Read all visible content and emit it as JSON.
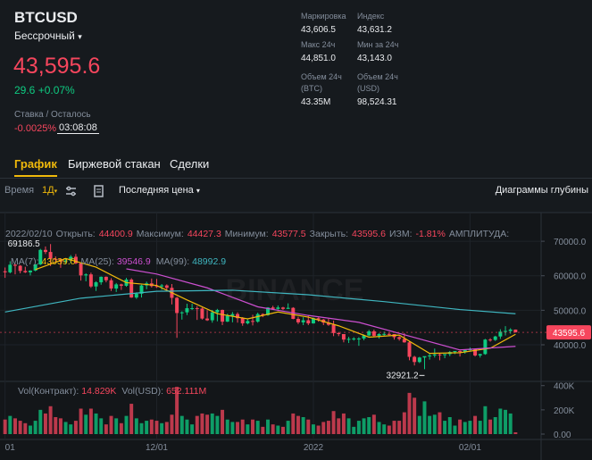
{
  "header": {
    "symbol": "BTCUSD",
    "contract": "Бессрочный",
    "price": "43,595.6",
    "change": "29.6 +0.07%",
    "funding_label": "Ставка / Осталось",
    "funding_rate": "-0.0025%",
    "countdown": "03:08:08"
  },
  "stats": [
    {
      "label": "Маркировка",
      "value": "43,606.5"
    },
    {
      "label": "Индекс",
      "value": "43,631.2"
    },
    {
      "label": "Макс 24ч",
      "value": "44,851.0"
    },
    {
      "label": "Мин за 24ч",
      "value": "43,143.0"
    },
    {
      "label": "Объем 24ч (BTC)",
      "value": "43.35M"
    },
    {
      "label": "Объем 24ч (USD)",
      "value": "98,524.31"
    }
  ],
  "tabs": [
    "График",
    "Биржевой стакан",
    "Сделки"
  ],
  "toolbar": {
    "time_label": "Время",
    "interval": "1Д",
    "price_type": "Последняя цена",
    "depth": "Диаграммы глубины"
  },
  "chart_data": {
    "type": "candlestick",
    "watermark": "BINANCE",
    "ohlc_legend": {
      "date": "2022/02/10",
      "open": "Открыть:",
      "high": "Максимум:",
      "low": "Минимум:",
      "close": "Закрыть:",
      "change_label": "ИЗМ:",
      "change": "-1.81%",
      "amplitude": "АМПЛИТУДА:"
    },
    "up_color": "#0ecb81",
    "down_color": "#f6465d",
    "xlim": [
      -1,
      105
    ],
    "xticks": [
      {
        "value": 0,
        "label": "01"
      },
      {
        "value": 30,
        "label": "12/01"
      },
      {
        "value": 61,
        "label": "2022"
      },
      {
        "value": 92,
        "label": "02/01"
      }
    ],
    "ylim": [
      29900,
      76500
    ],
    "yticks": [
      {
        "value": 70000,
        "label": "70000.0"
      },
      {
        "value": 60000,
        "label": "60000.0"
      },
      {
        "value": 50000,
        "label": "50000.0"
      },
      {
        "value": 40000,
        "label": "40000.0"
      }
    ],
    "candles": [
      [
        61300,
        62400,
        59400,
        61000
      ],
      [
        61000,
        64200,
        60700,
        63200
      ],
      [
        63200,
        63500,
        60400,
        62900
      ],
      [
        62900,
        63100,
        60700,
        61400
      ],
      [
        61400,
        62600,
        60800,
        61000
      ],
      [
        61000,
        61600,
        60100,
        61500
      ],
      [
        61500,
        63300,
        61300,
        63300
      ],
      [
        63300,
        67800,
        63100,
        67500
      ],
      [
        67500,
        68500,
        66300,
        66900
      ],
      [
        66900,
        69186.5,
        62800,
        64900
      ],
      [
        64900,
        65600,
        64100,
        64800
      ],
      [
        64800,
        65000,
        62300,
        64100
      ],
      [
        64100,
        65000,
        63400,
        64400
      ],
      [
        64400,
        66000,
        63600,
        65500
      ],
      [
        65500,
        66300,
        63400,
        63600
      ],
      [
        63600,
        63600,
        58600,
        60100
      ],
      [
        60100,
        60700,
        58400,
        60400
      ],
      [
        60400,
        60900,
        56500,
        56900
      ],
      [
        56900,
        58400,
        55600,
        58100
      ],
      [
        58100,
        59800,
        57400,
        59700
      ],
      [
        59700,
        59800,
        58100,
        58700
      ],
      [
        58700,
        59300,
        55600,
        56300
      ],
      [
        56300,
        57900,
        55300,
        57500
      ],
      [
        57500,
        57700,
        55900,
        57100
      ],
      [
        57100,
        59400,
        56800,
        58900
      ],
      [
        58900,
        59300,
        53600,
        53700
      ],
      [
        53700,
        55200,
        53300,
        54800
      ],
      [
        54800,
        57400,
        53700,
        57200
      ],
      [
        57200,
        58300,
        56100,
        57800
      ],
      [
        57800,
        59200,
        56600,
        57000
      ],
      [
        57000,
        59100,
        56500,
        56900
      ],
      [
        56900,
        57600,
        55900,
        57200
      ],
      [
        57200,
        57500,
        55900,
        56500
      ],
      [
        56500,
        57600,
        51700,
        53600
      ],
      [
        53600,
        53900,
        42000,
        49200
      ],
      [
        49200,
        49700,
        47300,
        49400
      ],
      [
        49400,
        51900,
        48600,
        50600
      ],
      [
        50600,
        51900,
        50100,
        50600
      ],
      [
        50600,
        51200,
        47200,
        50500
      ],
      [
        50500,
        50800,
        47300,
        47600
      ],
      [
        47600,
        50000,
        46900,
        47100
      ],
      [
        47100,
        50100,
        46400,
        49400
      ],
      [
        49400,
        50400,
        46800,
        50100
      ],
      [
        50100,
        50200,
        45700,
        46700
      ],
      [
        46700,
        49000,
        46600,
        48400
      ],
      [
        48400,
        49500,
        46500,
        48900
      ],
      [
        48900,
        49400,
        46400,
        47700
      ],
      [
        47700,
        48000,
        45500,
        46200
      ],
      [
        46200,
        47400,
        45900,
        46900
      ],
      [
        46900,
        48700,
        45600,
        46700
      ],
      [
        46700,
        49300,
        46400,
        48900
      ],
      [
        48900,
        49100,
        48000,
        48600
      ],
      [
        48600,
        50900,
        48400,
        50800
      ],
      [
        50800,
        51300,
        50300,
        50400
      ],
      [
        50400,
        51400,
        50200,
        50800
      ],
      [
        50800,
        51000,
        50100,
        50400
      ],
      [
        50400,
        52000,
        50400,
        50700
      ],
      [
        50700,
        50900,
        47400,
        47500
      ],
      [
        47500,
        48100,
        46000,
        46500
      ],
      [
        46500,
        48000,
        45700,
        47100
      ],
      [
        47100,
        48500,
        45700,
        46200
      ],
      [
        46200,
        47900,
        46100,
        47700
      ],
      [
        47700,
        47900,
        46700,
        47300
      ],
      [
        47300,
        47500,
        45700,
        46400
      ],
      [
        46400,
        47500,
        45500,
        45800
      ],
      [
        45800,
        47000,
        42500,
        43400
      ],
      [
        43400,
        43700,
        42500,
        43100
      ],
      [
        43100,
        43100,
        40700,
        41500
      ],
      [
        41500,
        42300,
        40500,
        41700
      ],
      [
        41700,
        42200,
        41200,
        41800
      ],
      [
        41800,
        42200,
        39700,
        41800
      ],
      [
        41800,
        43000,
        41300,
        42700
      ],
      [
        42700,
        44300,
        42500,
        43900
      ],
      [
        43900,
        44400,
        42400,
        42600
      ],
      [
        42600,
        43400,
        41800,
        43100
      ],
      [
        43100,
        43800,
        42600,
        43150
      ],
      [
        43150,
        43500,
        42600,
        43100
      ],
      [
        43100,
        43100,
        41500,
        42200
      ],
      [
        42200,
        42500,
        41200,
        41700
      ],
      [
        41700,
        43400,
        40600,
        40700
      ],
      [
        40700,
        41100,
        35500,
        36500
      ],
      [
        36500,
        36800,
        34000,
        35000
      ],
      [
        35000,
        36500,
        34700,
        36300
      ],
      [
        36300,
        36400,
        32921.2,
        36700
      ],
      [
        36700,
        37500,
        35700,
        36900
      ],
      [
        36900,
        38900,
        36300,
        37200
      ],
      [
        37200,
        37500,
        35500,
        37000
      ],
      [
        37000,
        37200,
        36100,
        37300
      ],
      [
        37300,
        38200,
        36700,
        37900
      ],
      [
        37900,
        38000,
        37300,
        38200
      ],
      [
        38200,
        38300,
        36600,
        37900
      ],
      [
        37900,
        38700,
        37400,
        38500
      ],
      [
        38500,
        39200,
        38300,
        38700
      ],
      [
        38700,
        38900,
        36600,
        36900
      ],
      [
        36900,
        37400,
        36300,
        37300
      ],
      [
        37300,
        41700,
        37100,
        41500
      ],
      [
        41500,
        41900,
        40900,
        41400
      ],
      [
        41400,
        42600,
        41100,
        42400
      ],
      [
        42400,
        44500,
        41700,
        43800
      ],
      [
        43800,
        45400,
        42700,
        44000
      ],
      [
        44000,
        44800,
        43200,
        44400.9
      ],
      [
        44400.9,
        44427.3,
        43577.5,
        43595.6
      ]
    ],
    "ma": [
      {
        "name": "MA(7):",
        "value_label": "43039.0",
        "color": "#f0b90b",
        "x": [
          6,
          12,
          18,
          24,
          30,
          36,
          42,
          48,
          54,
          60,
          66,
          72,
          78,
          84,
          90,
          96,
          101
        ],
        "values": [
          61800,
          65000,
          62500,
          58000,
          57200,
          53000,
          49000,
          47500,
          49500,
          48000,
          45500,
          42200,
          42800,
          37500,
          37700,
          39000,
          43039
        ]
      },
      {
        "name": "MA(25):",
        "value_label": "39546.9",
        "color": "#cc4fd0",
        "x": [
          24,
          30,
          40,
          50,
          60,
          70,
          80,
          90,
          101
        ],
        "values": [
          62000,
          60500,
          56500,
          51000,
          48500,
          46500,
          42500,
          38500,
          39546.9
        ]
      },
      {
        "name": "MA(99):",
        "value_label": "48992.9",
        "color": "#3fb6c0",
        "x": [
          0,
          15,
          30,
          45,
          60,
          75,
          90,
          101
        ],
        "values": [
          49500,
          53500,
          55500,
          55800,
          54500,
          52500,
          50200,
          48992.9
        ]
      }
    ],
    "volume": {
      "legend": [
        {
          "label": "Vol(Контракт):",
          "value": "14.829K"
        },
        {
          "label": "Vol(USD):",
          "value": "652.111M"
        }
      ],
      "ylim": [
        0,
        420000
      ],
      "yticks": [
        {
          "value": 400000,
          "label": "400K"
        },
        {
          "value": 200000,
          "label": "200K"
        },
        {
          "value": 0,
          "label": "0.00"
        }
      ],
      "values": [
        120000,
        150000,
        130000,
        110000,
        90000,
        70000,
        110000,
        200000,
        170000,
        230000,
        140000,
        130000,
        100000,
        80000,
        110000,
        210000,
        160000,
        210000,
        170000,
        130000,
        80000,
        150000,
        130000,
        90000,
        150000,
        250000,
        130000,
        90000,
        110000,
        120000,
        110000,
        90000,
        100000,
        160000,
        390000,
        150000,
        120000,
        80000,
        150000,
        170000,
        160000,
        170000,
        150000,
        200000,
        120000,
        100000,
        100000,
        120000,
        80000,
        120000,
        110000,
        60000,
        120000,
        80000,
        70000,
        60000,
        110000,
        170000,
        150000,
        140000,
        120000,
        80000,
        70000,
        100000,
        110000,
        190000,
        130000,
        170000,
        130000,
        60000,
        110000,
        130000,
        140000,
        160000,
        100000,
        80000,
        70000,
        110000,
        110000,
        180000,
        340000,
        300000,
        150000,
        270000,
        150000,
        160000,
        180000,
        110000,
        140000,
        70000,
        120000,
        100000,
        110000,
        150000,
        110000,
        230000,
        120000,
        140000,
        210000,
        200000,
        170000,
        14829
      ]
    }
  }
}
